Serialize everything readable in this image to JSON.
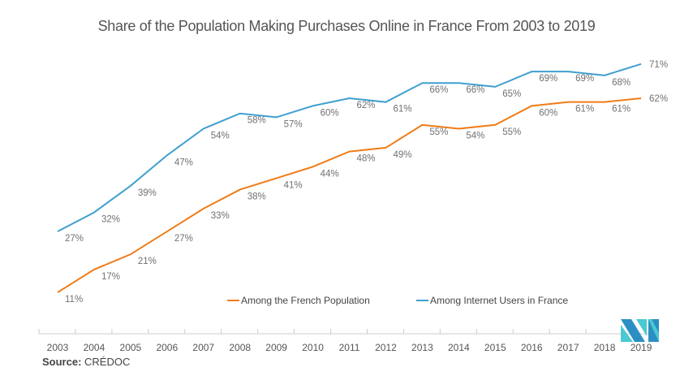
{
  "chart_data": {
    "type": "line",
    "title": "Share of the Population Making Purchases Online in France From 2003 to 2019",
    "xlabel": "",
    "ylabel": "",
    "x": [
      "2003",
      "2004",
      "2005",
      "2006",
      "2007",
      "2008",
      "2009",
      "2010",
      "2011",
      "2012",
      "2013",
      "2014",
      "2015",
      "2016",
      "2017",
      "2018",
      "2019"
    ],
    "ylim": [
      0,
      100
    ],
    "grid": false,
    "legend_position": "bottom-center",
    "series": [
      {
        "name": "Among the French Population",
        "color": "#f07b16",
        "values": [
          11,
          17,
          21,
          27,
          33,
          38,
          41,
          44,
          48,
          49,
          55,
          54,
          55,
          60,
          61,
          61,
          62
        ]
      },
      {
        "name": "Among Internet Users in France",
        "color": "#3f9fd0",
        "values": [
          27,
          32,
          39,
          47,
          54,
          58,
          57,
          60,
          62,
          61,
          66,
          66,
          65,
          69,
          69,
          68,
          71
        ]
      }
    ],
    "value_suffix": "%"
  },
  "source": {
    "label": "Source:",
    "value": "CRÉDOC"
  }
}
